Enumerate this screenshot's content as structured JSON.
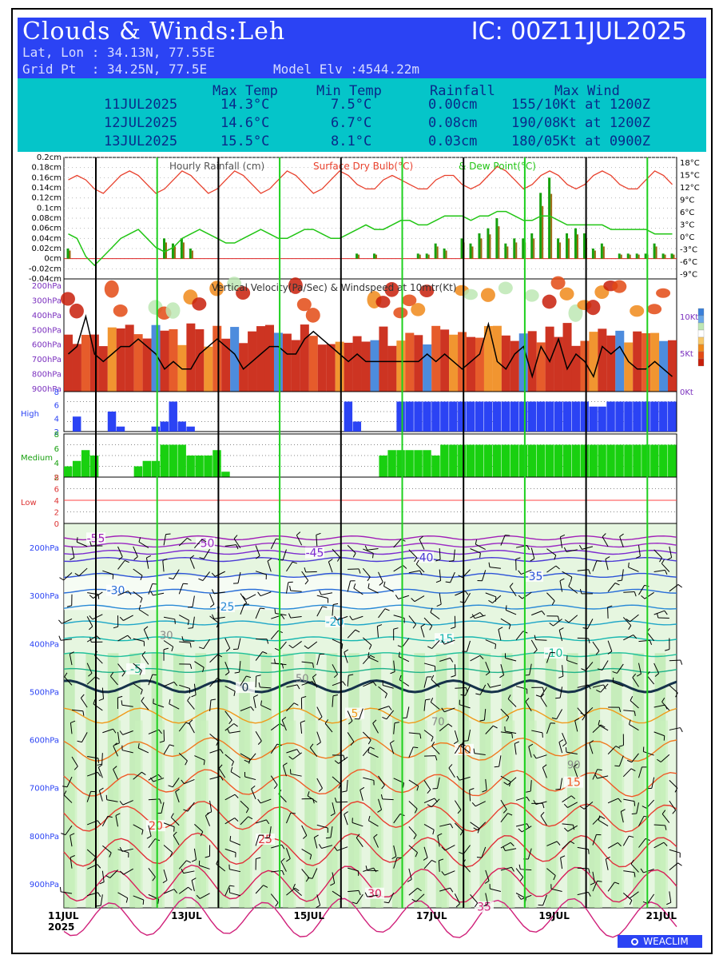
{
  "header": {
    "title_prefix": "Clouds & Winds:",
    "location": "Leh",
    "ic": "IC: 00Z11JUL2025",
    "latlon": "Lat, Lon : 34.13N, 77.55E",
    "gridpt": "Grid Pt  : 34.25N, 77.5E",
    "elev": "Model Elv :4544.22m"
  },
  "summary": {
    "headers": [
      "Max Temp",
      "Min Temp",
      "Rainfall",
      "Max Wind"
    ],
    "rows": [
      {
        "date": "11JUL2025",
        "max": "14.3°C",
        "min": "7.5°C",
        "rain": "0.00cm",
        "wind": "155/10Kt at 1200Z"
      },
      {
        "date": "12JUL2025",
        "max": "14.6°C",
        "min": "6.7°C",
        "rain": "0.08cm",
        "wind": "190/08Kt at 1200Z"
      },
      {
        "date": "13JUL2025",
        "max": "15.5°C",
        "min": "8.1°C",
        "rain": "0.03cm",
        "wind": "180/05Kt at 0900Z"
      }
    ]
  },
  "chart_data": [
    {
      "type": "bar",
      "title": "Hourly Rainfall (cm)   Surface Dry Bulb(°C)   & Dew Point(°C)",
      "legend_rain": "Hourly Rainfall (cm)",
      "legend_temp": "Surface Dry Bulb(°C)",
      "legend_dew": "& Dew Point(°C)",
      "left_ticks": [
        "0.2cm",
        "0.18cm",
        "0.16cm",
        "0.14cm",
        "0.12cm",
        "0.1cm",
        "0.08cm",
        "0.06cm",
        "0.04cm",
        "0.02cm",
        "0cm",
        "-0.02cm",
        "-0.04cm"
      ],
      "right_ticks": [
        "18°C",
        "15°C",
        "12°C",
        "9°C",
        "6°C",
        "3°C",
        "0°C",
        "-3°C",
        "-6°C",
        "-9°C"
      ],
      "ylim": [
        -0.04,
        0.2
      ],
      "temp_ylim": [
        -9,
        18
      ],
      "temperature": [
        13,
        14,
        13,
        11,
        10,
        12,
        14,
        15,
        14,
        12,
        10,
        11,
        13,
        15,
        14,
        12,
        10,
        11,
        13,
        15,
        14,
        12,
        10,
        11,
        13,
        15,
        14,
        12,
        10,
        11,
        13,
        15,
        14,
        12,
        11,
        11,
        13,
        14,
        13,
        12,
        11,
        11,
        13,
        14,
        14,
        12,
        11,
        12,
        14,
        16,
        15,
        13,
        11,
        12,
        14,
        15,
        14,
        12,
        11,
        12,
        14,
        15,
        14,
        12,
        11,
        11,
        13,
        15,
        14,
        12
      ],
      "dewpoint": [
        1,
        0,
        -4,
        -6,
        -4,
        -2,
        0,
        1,
        2,
        0,
        -2,
        -3,
        -2,
        0,
        1,
        2,
        1,
        0,
        -1,
        -1,
        0,
        1,
        2,
        1,
        0,
        0,
        1,
        2,
        2,
        1,
        0,
        0,
        1,
        2,
        3,
        2,
        2,
        3,
        4,
        4,
        3,
        3,
        4,
        5,
        5,
        5,
        4,
        5,
        5,
        6,
        6,
        5,
        4,
        4,
        5,
        5,
        4,
        3,
        3,
        3,
        3,
        3,
        2,
        2,
        2,
        2,
        2,
        1,
        1,
        1
      ],
      "rainfall": [
        0.02,
        0,
        0,
        0,
        0,
        0,
        0,
        0,
        0,
        0,
        0,
        0.04,
        0.03,
        0.04,
        0.02,
        0,
        0,
        0,
        0,
        0,
        0,
        0,
        0,
        0,
        0,
        0,
        0,
        0,
        0,
        0,
        0,
        0,
        0,
        0.01,
        0,
        0.01,
        0,
        0,
        0,
        0,
        0.01,
        0.01,
        0.03,
        0.02,
        0,
        0.04,
        0.03,
        0.05,
        0.06,
        0.08,
        0.03,
        0.04,
        0.04,
        0.05,
        0.13,
        0.16,
        0.04,
        0.05,
        0.06,
        0.05,
        0.02,
        0.03,
        0,
        0.01,
        0.01,
        0.01,
        0.01,
        0.03,
        0.01,
        0.01
      ],
      "legend": "bottom-none"
    },
    {
      "type": "heatmap",
      "title": "Vertical Velocity(Pa/Sec) & Windspeed at 10mtr(Kt)",
      "left_ticks": [
        "200hPa",
        "300hPa",
        "400hPa",
        "500hPa",
        "600hPa",
        "700hPa",
        "800hPa",
        "900hPa"
      ],
      "right_ticks": [
        "10Kt",
        "5Kt",
        "0Kt"
      ],
      "windspeed_ylim": [
        0,
        15
      ],
      "windspeed": [
        5,
        6,
        10,
        5,
        4,
        5,
        6,
        6,
        7,
        6,
        5,
        3,
        4,
        3,
        3,
        5,
        6,
        7,
        6,
        5,
        3,
        4,
        5,
        6,
        6,
        5,
        5,
        7,
        8,
        7,
        6,
        5,
        4,
        5,
        4,
        4,
        4,
        4,
        4,
        4,
        4,
        5,
        4,
        5,
        4,
        3,
        4,
        5,
        9,
        4,
        3,
        5,
        6,
        2,
        6,
        4,
        7,
        3,
        5,
        4,
        2,
        6,
        5,
        6,
        4,
        3,
        3,
        4,
        3,
        2
      ]
    },
    {
      "type": "bar",
      "series_label": "High",
      "left_ticks": [
        "8",
        "6",
        "4",
        "2"
      ],
      "ylim": [
        0,
        8
      ],
      "values": [
        0,
        3,
        0,
        0,
        0,
        4,
        1,
        0,
        0,
        0,
        1,
        2,
        6,
        2,
        1,
        0,
        0,
        0,
        0,
        0,
        0,
        0,
        0,
        0,
        0,
        0,
        0,
        0,
        0,
        0,
        0,
        0,
        6,
        2,
        0,
        0,
        0,
        0,
        6,
        6,
        6,
        6,
        6,
        6,
        6,
        6,
        6,
        6,
        6,
        6,
        6,
        6,
        6,
        6,
        6,
        6,
        6,
        6,
        6,
        6,
        5,
        5,
        6,
        6,
        6,
        6,
        6,
        6,
        6,
        6
      ]
    },
    {
      "type": "bar",
      "series_label": "Medium",
      "left_ticks": [
        "8",
        "6",
        "4",
        "2"
      ],
      "ylim": [
        0,
        8
      ],
      "values": [
        2,
        3,
        5,
        4,
        0,
        0,
        0,
        0,
        2,
        3,
        3,
        6,
        6,
        6,
        4,
        4,
        4,
        5,
        1,
        0,
        0,
        0,
        0,
        0,
        0,
        0,
        0,
        0,
        0,
        0,
        0,
        0,
        0,
        0,
        0,
        0,
        4,
        5,
        5,
        5,
        5,
        5,
        4,
        6,
        6,
        6,
        6,
        6,
        6,
        6,
        6,
        6,
        6,
        6,
        6,
        6,
        6,
        6,
        6,
        6,
        6,
        6,
        6,
        6,
        6,
        6,
        6,
        6,
        6,
        6
      ]
    },
    {
      "type": "bar",
      "series_label": "Low",
      "left_ticks": [
        "8",
        "6",
        "4",
        "2",
        "0"
      ],
      "ylim": [
        0,
        8
      ],
      "values": []
    },
    {
      "type": "line",
      "title": "",
      "left_ticks": [
        "200hPa",
        "300hPa",
        "400hPa",
        "500hPa",
        "600hPa",
        "700hPa",
        "800hPa",
        "900hPa"
      ],
      "x_ticks": [
        "11JUL",
        "13JUL",
        "15JUL",
        "17JUL",
        "19JUL",
        "21JUL"
      ],
      "x_year": "2025",
      "temperature_contour_labels": [
        "-55",
        "-50",
        "-45",
        "-40",
        "-35",
        "-30",
        "-25",
        "-20",
        "-15",
        "-10",
        "-5",
        "0",
        "5",
        "10",
        "15",
        "20",
        "25",
        "30",
        "35"
      ],
      "humidity_labels": [
        "30",
        "50",
        "70",
        "90"
      ],
      "ylim": [
        950,
        150
      ]
    }
  ],
  "logo": "WEACLIM"
}
